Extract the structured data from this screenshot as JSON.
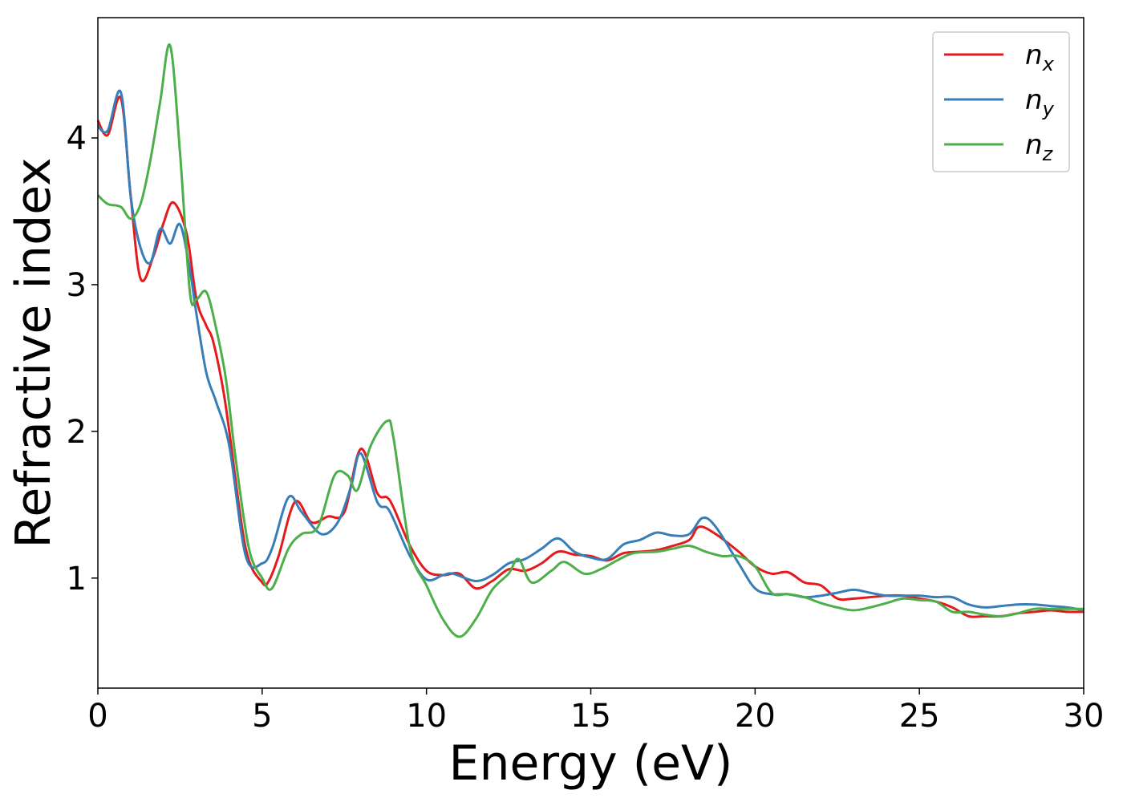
{
  "chart_data": {
    "type": "line",
    "xlabel": "Energy (eV)",
    "ylabel": "Refractive index",
    "xlim": [
      0,
      30
    ],
    "ylim": [
      0.25,
      4.82
    ],
    "xticks": [
      0,
      5,
      10,
      15,
      20,
      25,
      30
    ],
    "yticks": [
      1,
      2,
      3,
      4
    ],
    "grid": false,
    "legend_position": "top-right",
    "series": [
      {
        "name": "n",
        "subscript": "x",
        "color": "#e41a1c",
        "x": [
          0,
          0.3,
          0.7,
          1.0,
          1.3,
          1.7,
          2.0,
          2.3,
          2.7,
          3.0,
          3.3,
          3.5,
          3.8,
          4.0,
          4.5,
          5.0,
          5.2,
          5.5,
          6.0,
          6.5,
          7.0,
          7.5,
          8.0,
          8.5,
          8.8,
          9.0,
          9.5,
          10.0,
          10.5,
          11.0,
          11.5,
          12.0,
          12.5,
          13.0,
          13.5,
          14.0,
          14.5,
          15.0,
          15.5,
          16.0,
          16.5,
          17.0,
          17.5,
          18.0,
          18.3,
          18.8,
          19.5,
          20.0,
          20.5,
          21.0,
          21.5,
          22.0,
          22.5,
          23.0,
          23.5,
          24.0,
          24.5,
          25.0,
          25.5,
          26.0,
          26.5,
          27.0,
          27.5,
          28.0,
          28.5,
          29.0,
          29.5,
          30.0
        ],
        "y": [
          4.12,
          4.02,
          4.27,
          3.6,
          3.04,
          3.2,
          3.42,
          3.56,
          3.35,
          2.9,
          2.72,
          2.62,
          2.3,
          2.0,
          1.2,
          0.97,
          0.98,
          1.15,
          1.52,
          1.38,
          1.42,
          1.45,
          1.88,
          1.58,
          1.55,
          1.48,
          1.22,
          1.05,
          1.02,
          1.03,
          0.93,
          0.98,
          1.06,
          1.05,
          1.1,
          1.18,
          1.16,
          1.15,
          1.12,
          1.17,
          1.18,
          1.19,
          1.22,
          1.26,
          1.35,
          1.3,
          1.18,
          1.08,
          1.03,
          1.04,
          0.97,
          0.95,
          0.86,
          0.86,
          0.87,
          0.88,
          0.88,
          0.86,
          0.84,
          0.8,
          0.74,
          0.74,
          0.74,
          0.76,
          0.77,
          0.78,
          0.77,
          0.77
        ]
      },
      {
        "name": "n",
        "subscript": "y",
        "color": "#377eb8",
        "x": [
          0,
          0.3,
          0.7,
          1.0,
          1.3,
          1.6,
          1.9,
          2.2,
          2.5,
          2.8,
          3.0,
          3.3,
          3.6,
          4.0,
          4.5,
          5.0,
          5.3,
          5.8,
          6.2,
          6.8,
          7.3,
          7.7,
          8.0,
          8.5,
          8.8,
          9.0,
          9.5,
          10.0,
          10.5,
          10.8,
          11.5,
          12.0,
          12.5,
          13.0,
          13.5,
          14.0,
          14.5,
          15.0,
          15.5,
          16.0,
          16.5,
          17.0,
          17.5,
          18.0,
          18.4,
          18.8,
          19.5,
          20.0,
          20.5,
          21.0,
          21.5,
          22.0,
          22.5,
          23.0,
          23.5,
          24.0,
          24.5,
          25.0,
          25.5,
          26.0,
          26.5,
          27.0,
          27.5,
          28.0,
          28.5,
          29.0,
          29.5,
          30.0
        ],
        "y": [
          4.08,
          4.05,
          4.31,
          3.6,
          3.25,
          3.15,
          3.38,
          3.28,
          3.41,
          3.1,
          2.8,
          2.4,
          2.2,
          1.9,
          1.15,
          1.1,
          1.2,
          1.55,
          1.45,
          1.3,
          1.38,
          1.62,
          1.85,
          1.52,
          1.48,
          1.4,
          1.15,
          0.99,
          1.02,
          1.03,
          0.98,
          1.02,
          1.1,
          1.13,
          1.2,
          1.27,
          1.18,
          1.14,
          1.13,
          1.23,
          1.26,
          1.31,
          1.29,
          1.3,
          1.41,
          1.35,
          1.1,
          0.93,
          0.89,
          0.89,
          0.87,
          0.88,
          0.9,
          0.92,
          0.9,
          0.88,
          0.88,
          0.88,
          0.87,
          0.87,
          0.82,
          0.8,
          0.81,
          0.82,
          0.82,
          0.81,
          0.8,
          0.78
        ]
      },
      {
        "name": "n",
        "subscript": "z",
        "color": "#4daf4a",
        "x": [
          0,
          0.3,
          0.7,
          1.0,
          1.3,
          1.6,
          1.9,
          2.2,
          2.5,
          2.8,
          3.0,
          3.3,
          3.6,
          3.9,
          4.2,
          4.6,
          5.0,
          5.3,
          5.8,
          6.2,
          6.7,
          7.2,
          7.6,
          7.9,
          8.3,
          8.8,
          9.0,
          9.5,
          10.0,
          10.5,
          11.0,
          11.5,
          12.0,
          12.5,
          12.8,
          13.2,
          13.8,
          14.2,
          14.8,
          15.3,
          15.8,
          16.3,
          17.0,
          17.5,
          18.0,
          18.5,
          19.0,
          19.5,
          20.0,
          20.5,
          21.0,
          21.5,
          22.0,
          22.5,
          23.0,
          23.5,
          24.0,
          24.5,
          25.0,
          25.5,
          26.0,
          26.5,
          27.0,
          27.5,
          28.0,
          28.5,
          29.0,
          29.5,
          30.0
        ],
        "y": [
          3.61,
          3.55,
          3.53,
          3.45,
          3.55,
          3.85,
          4.25,
          4.63,
          3.9,
          2.95,
          2.9,
          2.95,
          2.7,
          2.35,
          1.8,
          1.2,
          1.0,
          0.93,
          1.2,
          1.3,
          1.35,
          1.7,
          1.7,
          1.6,
          1.9,
          2.07,
          1.95,
          1.2,
          0.95,
          0.72,
          0.6,
          0.72,
          0.92,
          1.03,
          1.13,
          0.97,
          1.05,
          1.11,
          1.03,
          1.06,
          1.12,
          1.17,
          1.18,
          1.2,
          1.22,
          1.18,
          1.15,
          1.15,
          1.08,
          0.9,
          0.89,
          0.87,
          0.83,
          0.8,
          0.78,
          0.8,
          0.83,
          0.86,
          0.85,
          0.84,
          0.77,
          0.77,
          0.75,
          0.74,
          0.76,
          0.79,
          0.79,
          0.79,
          0.79
        ]
      }
    ]
  }
}
